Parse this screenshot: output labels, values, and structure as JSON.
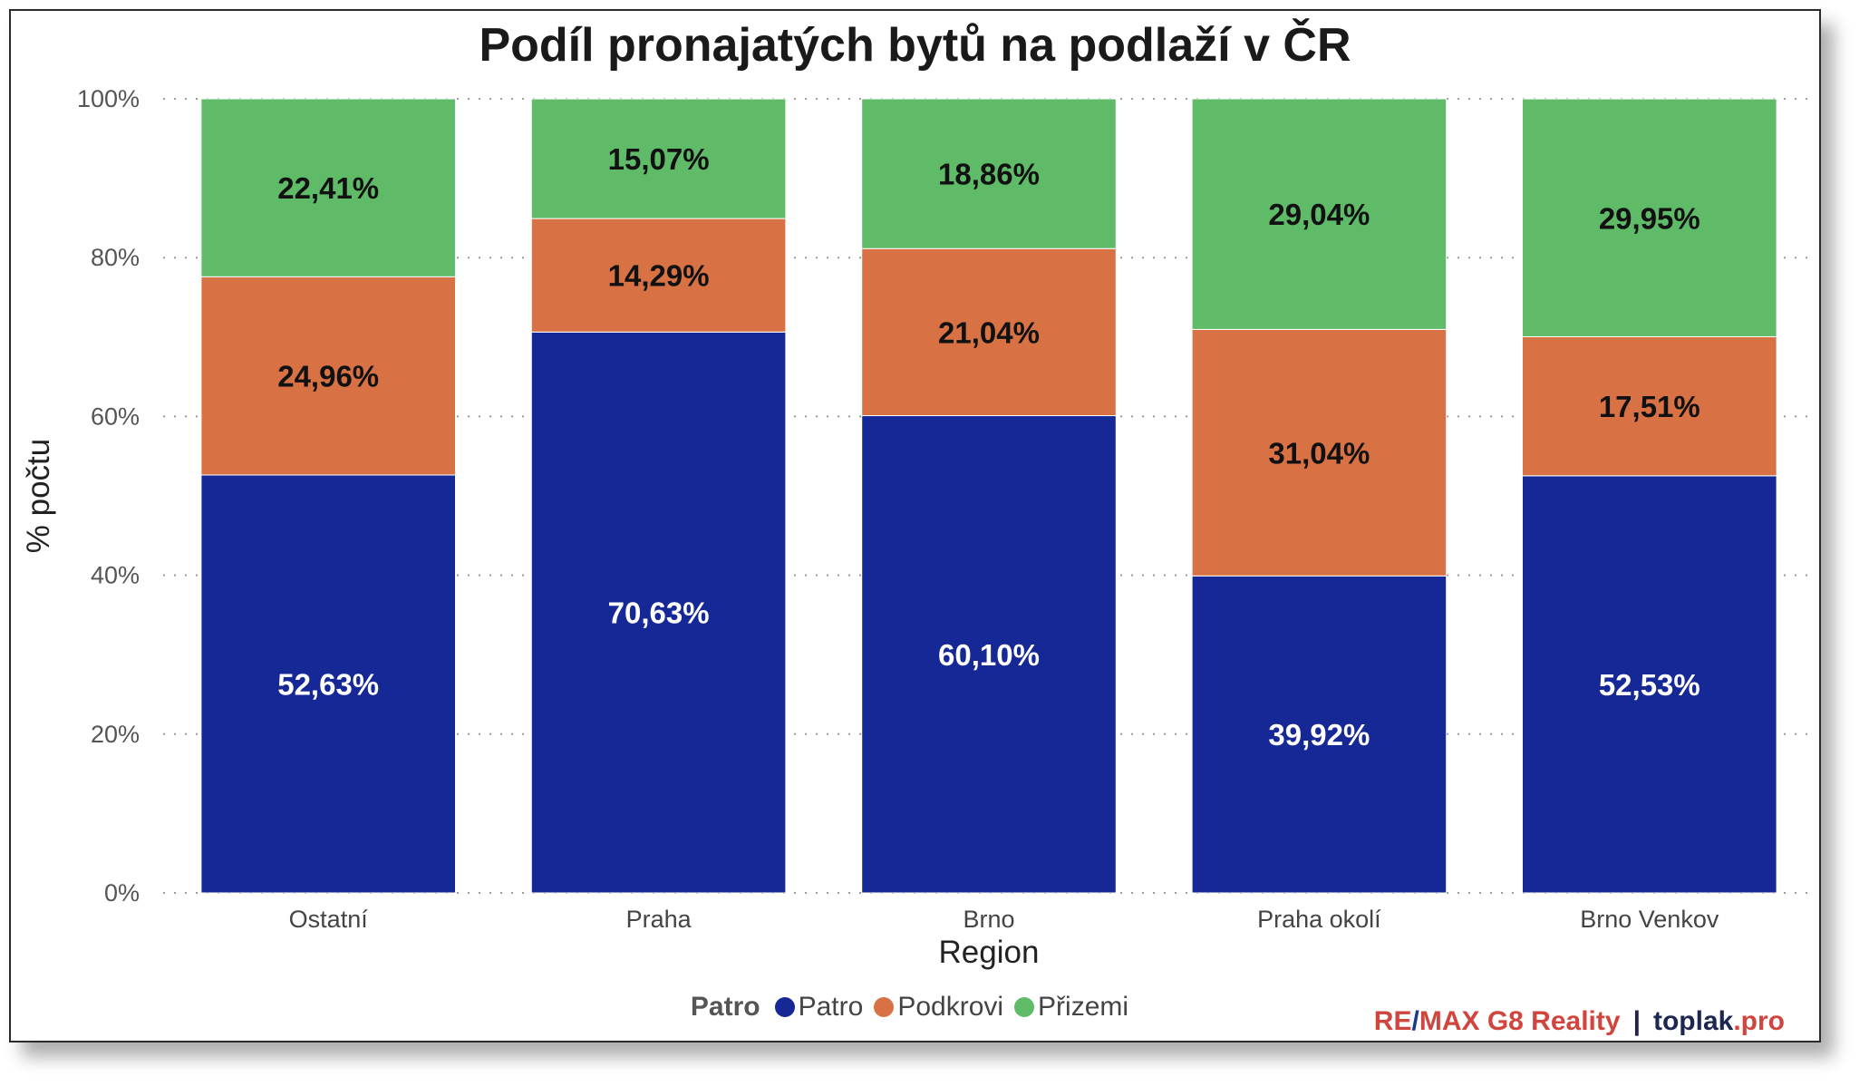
{
  "title": "Podíl pronajatých bytů na podlaží v ČR",
  "legend": {
    "title": "Patro",
    "items": [
      {
        "label": "Patro",
        "color": "#152896"
      },
      {
        "label": "Podkrovi",
        "color": "#d87245"
      },
      {
        "label": "Přizemi",
        "color": "#5fbb68"
      }
    ]
  },
  "credit": {
    "remax_1": "RE",
    "slash": "/",
    "remax_2": "MAX G8 Reality",
    "separator": "|",
    "toplak": "toplak",
    "pro": ".pro"
  },
  "chart_data": {
    "type": "bar",
    "stacked": true,
    "title": "Podíl pronajatých bytů na podlaží v ČR",
    "xlabel": "Region",
    "ylabel": "% počtu",
    "ylim": [
      0,
      100
    ],
    "yticks": [
      "0%",
      "20%",
      "40%",
      "60%",
      "80%",
      "100%"
    ],
    "grid": true,
    "legend_position": "bottom",
    "categories": [
      "Ostatní",
      "Praha",
      "Brno",
      "Praha okolí",
      "Brno Venkov"
    ],
    "series": [
      {
        "name": "Patro",
        "color": "#152896",
        "label_color": "#ffffff",
        "values": [
          52.63,
          70.63,
          60.1,
          39.92,
          52.53
        ],
        "labels": [
          "52,63%",
          "70,63%",
          "60,10%",
          "39,92%",
          "52,53%"
        ]
      },
      {
        "name": "Podkrovi",
        "color": "#d87245",
        "label_color": "#111111",
        "values": [
          24.96,
          14.29,
          21.04,
          31.04,
          17.51
        ],
        "labels": [
          "24,96%",
          "14,29%",
          "21,04%",
          "31,04%",
          "17,51%"
        ]
      },
      {
        "name": "Přizemi",
        "color": "#5fbb68",
        "label_color": "#111111",
        "values": [
          22.41,
          15.07,
          18.86,
          29.04,
          29.95
        ],
        "labels": [
          "22,41%",
          "15,07%",
          "18,86%",
          "29,04%",
          "29,95%"
        ]
      }
    ]
  }
}
